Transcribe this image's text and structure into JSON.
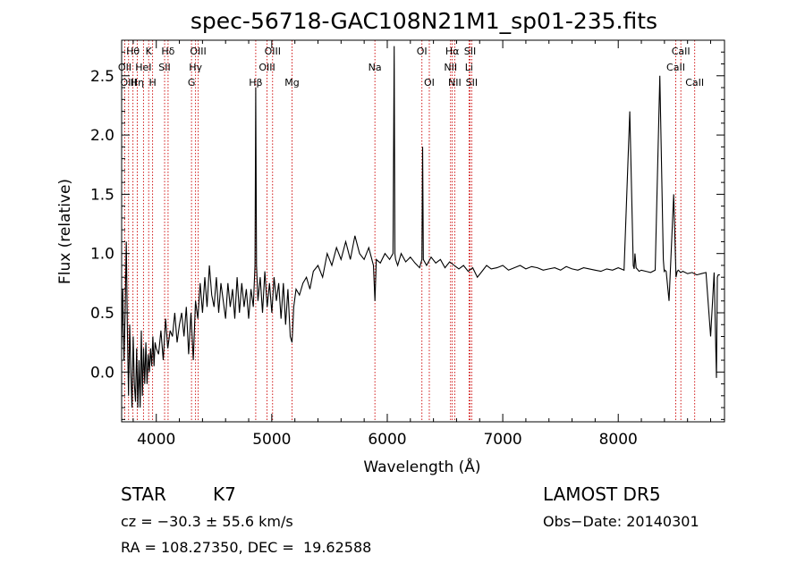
{
  "chart_data": {
    "type": "line",
    "title": "spec-56718-GAC108N21M1_sp01-235.fits",
    "xlabel": "Wavelength (Å)",
    "ylabel": "Flux (relative)",
    "xlim": [
      3700,
      8920
    ],
    "ylim": [
      -0.42,
      2.8
    ],
    "xticks": [
      4000,
      5000,
      6000,
      7000,
      8000
    ],
    "xtick_labels": [
      "4000",
      "5000",
      "6000",
      "7000",
      "8000"
    ],
    "yticks": [
      0.0,
      0.5,
      1.0,
      1.5,
      2.0,
      2.5
    ],
    "ytick_labels": [
      "0.0",
      "0.5",
      "1.0",
      "1.5",
      "2.0",
      "2.5"
    ],
    "grid": false,
    "line_color": "#000000",
    "marker_color": "#cc0000",
    "lines": [
      {
        "name": "Hθ",
        "wave": 3798,
        "row": 0
      },
      {
        "name": "OII",
        "wave": 3727,
        "row": 1
      },
      {
        "name": "OIII",
        "wave": 3760,
        "row": 2
      },
      {
        "name": "Hη",
        "wave": 3835,
        "row": 2
      },
      {
        "name": "K",
        "wave": 3934,
        "row": 0
      },
      {
        "name": "HeI",
        "wave": 3889,
        "row": 1
      },
      {
        "name": "H",
        "wave": 3968,
        "row": 2
      },
      {
        "name": "Hδ",
        "wave": 4102,
        "row": 0
      },
      {
        "name": "SII",
        "wave": 4072,
        "row": 1
      },
      {
        "name": "OIII",
        "wave": 4363,
        "row": 0
      },
      {
        "name": "Hγ",
        "wave": 4340,
        "row": 1
      },
      {
        "name": "G",
        "wave": 4305,
        "row": 2
      },
      {
        "name": "Hβ",
        "wave": 4861,
        "row": 2
      },
      {
        "name": "OIII",
        "wave": 5007,
        "row": 0
      },
      {
        "name": "OIII",
        "wave": 4959,
        "row": 1
      },
      {
        "name": "Mg",
        "wave": 5175,
        "row": 2
      },
      {
        "name": "Na",
        "wave": 5893,
        "row": 1
      },
      {
        "name": "OI",
        "wave": 6300,
        "row": 0
      },
      {
        "name": "OI",
        "wave": 6364,
        "row": 2
      },
      {
        "name": "Hα",
        "wave": 6563,
        "row": 0
      },
      {
        "name": "SII",
        "wave": 6717,
        "row": 0
      },
      {
        "name": "NII",
        "wave": 6548,
        "row": 1
      },
      {
        "name": "Li",
        "wave": 6708,
        "row": 1
      },
      {
        "name": "NII",
        "wave": 6584,
        "row": 2
      },
      {
        "name": "SII",
        "wave": 6731,
        "row": 2
      },
      {
        "name": "CaII",
        "wave": 8542,
        "row": 0
      },
      {
        "name": "CaII",
        "wave": 8498,
        "row": 1
      },
      {
        "name": "CaII",
        "wave": 8662,
        "row": 2
      }
    ],
    "spectrum_x": [
      3700,
      3710,
      3720,
      3730,
      3740,
      3750,
      3760,
      3770,
      3780,
      3790,
      3800,
      3810,
      3820,
      3830,
      3840,
      3850,
      3860,
      3870,
      3880,
      3890,
      3900,
      3910,
      3920,
      3930,
      3940,
      3950,
      3960,
      3970,
      3980,
      3990,
      4000,
      4020,
      4040,
      4060,
      4080,
      4100,
      4120,
      4140,
      4160,
      4180,
      4200,
      4220,
      4240,
      4260,
      4280,
      4300,
      4320,
      4340,
      4360,
      4380,
      4400,
      4420,
      4440,
      4460,
      4480,
      4500,
      4520,
      4540,
      4560,
      4580,
      4600,
      4620,
      4640,
      4660,
      4680,
      4700,
      4720,
      4740,
      4760,
      4780,
      4800,
      4820,
      4840,
      4855,
      4861,
      4868,
      4880,
      4900,
      4920,
      4940,
      4960,
      4980,
      5000,
      5020,
      5040,
      5060,
      5080,
      5100,
      5120,
      5140,
      5160,
      5175,
      5190,
      5210,
      5240,
      5270,
      5300,
      5330,
      5360,
      5400,
      5440,
      5480,
      5520,
      5560,
      5600,
      5640,
      5680,
      5720,
      5760,
      5800,
      5840,
      5880,
      5893,
      5905,
      5940,
      5980,
      6020,
      6050,
      6060,
      6066,
      6072,
      6090,
      6120,
      6160,
      6200,
      6240,
      6280,
      6300,
      6306,
      6312,
      6340,
      6380,
      6420,
      6460,
      6500,
      6540,
      6580,
      6620,
      6660,
      6700,
      6740,
      6780,
      6820,
      6860,
      6900,
      6950,
      7000,
      7050,
      7100,
      7150,
      7200,
      7250,
      7300,
      7350,
      7400,
      7450,
      7500,
      7550,
      7600,
      7650,
      7700,
      7750,
      7800,
      7850,
      7900,
      7950,
      8000,
      8050,
      8100,
      8130,
      8138,
      8145,
      8155,
      8180,
      8200,
      8240,
      8280,
      8320,
      8360,
      8390,
      8398,
      8405,
      8415,
      8440,
      8480,
      8500,
      8510,
      8520,
      8540,
      8560,
      8600,
      8640,
      8680,
      8720,
      8760,
      8800,
      8830,
      8850,
      8858,
      8866,
      8880,
      8900,
      8920
    ],
    "spectrum_y": [
      0.2,
      0.7,
      0.1,
      0.5,
      1.1,
      0.3,
      -0.2,
      0.4,
      0.0,
      -0.3,
      0.3,
      -0.1,
      -0.25,
      0.2,
      -0.3,
      0.1,
      -0.3,
      0.35,
      -0.2,
      0.2,
      -0.1,
      0.25,
      -0.1,
      0.15,
      0.0,
      0.2,
      0.05,
      0.3,
      0.05,
      0.25,
      0.2,
      0.15,
      0.35,
      0.1,
      0.45,
      0.2,
      0.35,
      0.3,
      0.5,
      0.25,
      0.4,
      0.5,
      0.3,
      0.55,
      0.15,
      0.5,
      0.1,
      0.6,
      0.45,
      0.75,
      0.5,
      0.8,
      0.55,
      0.9,
      0.65,
      0.55,
      0.8,
      0.5,
      0.75,
      0.6,
      0.45,
      0.75,
      0.55,
      0.7,
      0.45,
      0.8,
      0.5,
      0.75,
      0.55,
      0.7,
      0.45,
      0.7,
      0.55,
      0.9,
      2.4,
      0.9,
      0.6,
      0.8,
      0.5,
      0.85,
      0.55,
      0.75,
      0.5,
      0.8,
      0.6,
      0.75,
      0.45,
      0.75,
      0.4,
      0.7,
      0.3,
      0.25,
      0.55,
      0.7,
      0.65,
      0.75,
      0.8,
      0.7,
      0.85,
      0.9,
      0.8,
      1.0,
      0.9,
      1.05,
      0.95,
      1.1,
      0.95,
      1.15,
      1.0,
      0.95,
      1.05,
      0.9,
      0.6,
      0.95,
      0.92,
      1.0,
      0.95,
      1.0,
      2.75,
      1.0,
      0.95,
      0.9,
      1.0,
      0.93,
      0.97,
      0.92,
      0.88,
      0.95,
      1.9,
      0.95,
      0.9,
      0.97,
      0.92,
      0.95,
      0.88,
      0.93,
      0.9,
      0.87,
      0.9,
      0.85,
      0.88,
      0.8,
      0.85,
      0.9,
      0.87,
      0.88,
      0.9,
      0.86,
      0.88,
      0.9,
      0.87,
      0.89,
      0.88,
      0.86,
      0.87,
      0.88,
      0.86,
      0.89,
      0.87,
      0.86,
      0.88,
      0.87,
      0.86,
      0.85,
      0.87,
      0.86,
      0.88,
      0.86,
      2.2,
      0.9,
      0.87,
      1.0,
      0.88,
      0.85,
      0.86,
      0.85,
      0.84,
      0.86,
      2.5,
      0.95,
      0.85,
      0.86,
      0.85,
      0.6,
      1.5,
      0.8,
      0.85,
      0.86,
      0.84,
      0.85,
      0.83,
      0.84,
      0.82,
      0.83,
      0.84,
      0.3,
      0.84,
      -0.05,
      0.8,
      0.82,
      0.82
    ]
  },
  "info": {
    "object_type": "STAR",
    "subclass": "K7",
    "survey": "LAMOST DR5",
    "cz": "cz = −30.3 ± 55.6 km/s",
    "obs_date": "Obs−Date: 20140301",
    "coords": "RA = 108.27350, DEC =  19.62588"
  }
}
